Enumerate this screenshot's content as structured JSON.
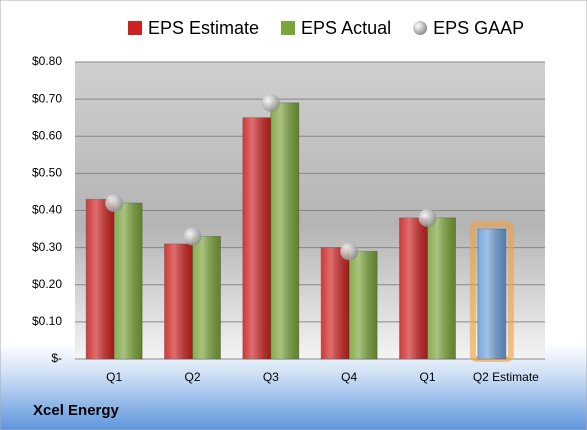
{
  "chart_data": {
    "type": "bar",
    "title": "Xcel Energy",
    "categories": [
      "Q1",
      "Q2",
      "Q3",
      "Q4",
      "Q1",
      "Q2 Estimate"
    ],
    "series": [
      {
        "name": "EPS Estimate",
        "color": "#cc2222",
        "values": [
          0.43,
          0.31,
          0.65,
          0.3,
          0.38,
          0.35
        ]
      },
      {
        "name": "EPS Actual",
        "color": "#7aa33a",
        "values": [
          0.42,
          0.33,
          0.69,
          0.29,
          0.38,
          null
        ]
      },
      {
        "name": "EPS GAAP",
        "color": "#b8b8b8",
        "marker": "circle",
        "values": [
          0.42,
          0.33,
          0.69,
          0.29,
          0.38,
          null
        ]
      }
    ],
    "highlight": {
      "index": 5,
      "color": "#6f9fd8",
      "glow": "#f0a040"
    },
    "ylim": [
      0,
      0.8
    ],
    "yticks": [
      {
        "value": 0,
        "label": "$-"
      },
      {
        "value": 0.1,
        "label": "$0.10"
      },
      {
        "value": 0.2,
        "label": "$0.20"
      },
      {
        "value": 0.3,
        "label": "$0.30"
      },
      {
        "value": 0.4,
        "label": "$0.40"
      },
      {
        "value": 0.5,
        "label": "$0.50"
      },
      {
        "value": 0.6,
        "label": "$0.60"
      },
      {
        "value": 0.7,
        "label": "$0.70"
      },
      {
        "value": 0.8,
        "label": "$0.80"
      }
    ],
    "grid": true
  }
}
